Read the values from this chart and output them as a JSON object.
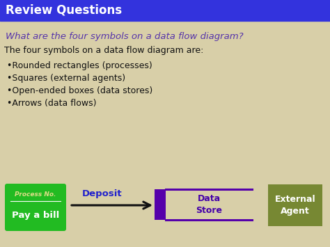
{
  "background_color": "#d8cfa8",
  "header_color": "#3333dd",
  "header_text": "Review Questions",
  "header_text_color": "#ffffff",
  "question_text": "What are the four symbols on a data flow diagram?",
  "question_color": "#5533aa",
  "answer_intro": "The four symbols on a data flow diagram are:",
  "answer_intro_color": "#111111",
  "bullet_items": [
    "•Rounded rectangles (processes)",
    "•Squares (external agents)",
    "•Open-ended boxes (data stores)",
    "•Arrows (data flows)"
  ],
  "bullet_color": "#111111",
  "process_box_color": "#22bb22",
  "process_label_top": "Process No.",
  "process_label_bottom": "Pay a bill",
  "process_label_color": "#ffffff",
  "process_label_top_color": "#dddd88",
  "arrow_label": "Deposit",
  "arrow_label_color": "#2222cc",
  "arrow_color": "#111111",
  "datastore_bar_color": "#5500aa",
  "datastore_line_color": "#5500aa",
  "datastore_label": "Data\nStore",
  "datastore_label_color": "#4400aa",
  "external_box_color": "#778833",
  "external_label": "External\nAgent",
  "external_label_color": "#ffffff",
  "figw": 4.74,
  "figh": 3.55,
  "dpi": 100
}
